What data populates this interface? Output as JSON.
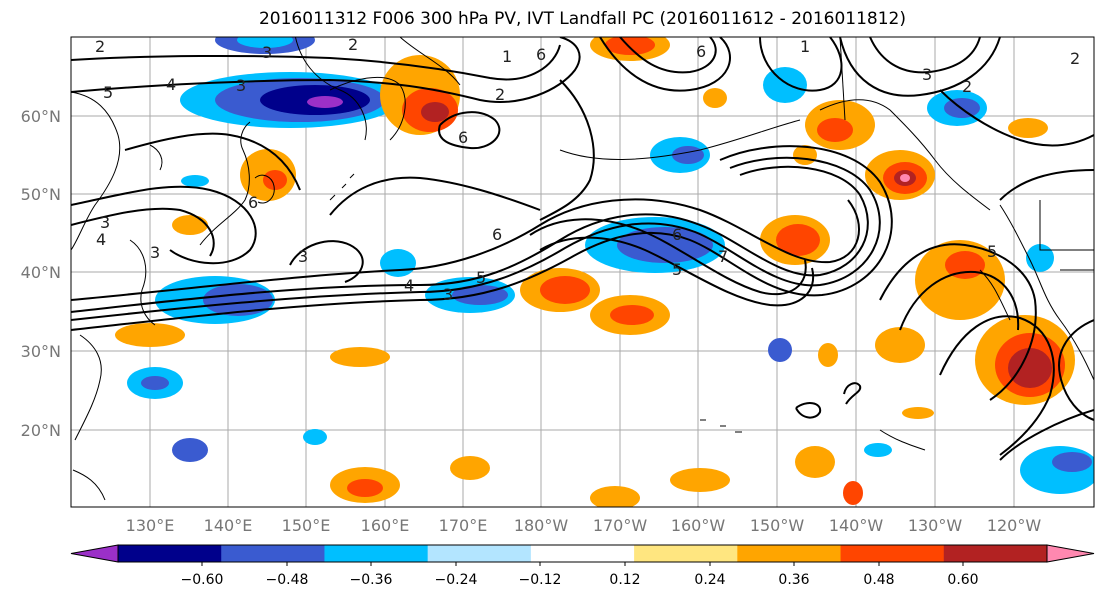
{
  "title": "2016011312 F006 300 hPa PV, IVT Landfall PC (2016011612 - 2016011812)",
  "lon_labels": [
    "130°E",
    "140°E",
    "150°E",
    "160°E",
    "170°E",
    "180°W",
    "170°W",
    "160°W",
    "150°W",
    "140°W",
    "130°W",
    "120°W"
  ],
  "lat_labels": [
    "60°N",
    "50°N",
    "40°N",
    "30°N",
    "20°N"
  ],
  "colorbar": {
    "ticks": [
      "−0.60",
      "−0.48",
      "−0.36",
      "−0.24",
      "−0.12",
      "0.12",
      "0.24",
      "0.36",
      "0.48",
      "0.60"
    ],
    "colors": [
      "#9b30c8",
      "#00008b",
      "#3a5bd0",
      "#00bfff",
      "#b3e5ff",
      "#ffffff",
      "#ffe680",
      "#ffa500",
      "#ff4500",
      "#b22222",
      "#ff88b0"
    ]
  },
  "contour_labels": [
    "2",
    "3",
    "4",
    "5",
    "6",
    "7",
    "1"
  ]
}
